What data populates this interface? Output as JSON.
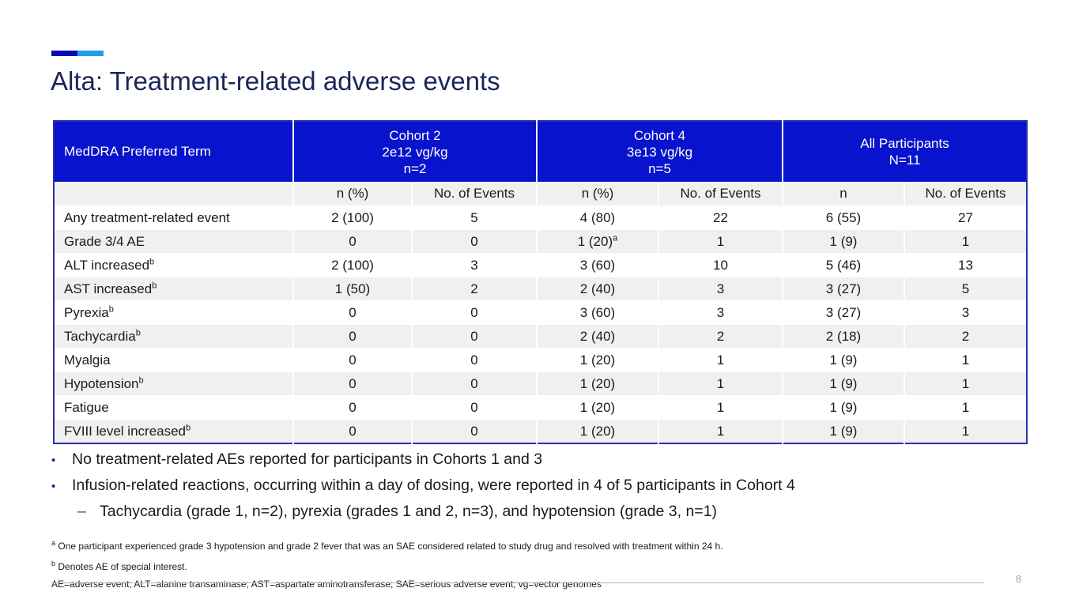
{
  "slide": {
    "title": "Alta: Treatment-related adverse events",
    "page_number": "8",
    "accent_dark_blue": "#0b0bb5",
    "accent_light_blue": "#209fe8",
    "header_blue": "#0813cd",
    "title_navy": "#1b2559"
  },
  "table": {
    "term_header": "MedDRA Preferred Term",
    "groups": [
      {
        "lines": [
          "Cohort 2",
          "2e12 vg/kg",
          "n=2"
        ]
      },
      {
        "lines": [
          "Cohort 4",
          "3e13 vg/kg",
          "n=5"
        ]
      },
      {
        "lines": [
          "All Participants",
          "N=11"
        ]
      }
    ],
    "subheaders": [
      "n (%)",
      "No. of Events",
      "n (%)",
      "No. of Events",
      "n",
      "No. of Events"
    ],
    "rows": [
      [
        "Any treatment-related event",
        "2 (100)",
        "5",
        "4 (80)",
        "22",
        "6 (55)",
        "27"
      ],
      [
        "Grade 3/4 AE",
        "0",
        "0",
        "1 (20)^a",
        "1",
        "1 (9)",
        "1"
      ],
      [
        "ALT increased^b",
        "2 (100)",
        "3",
        "3 (60)",
        "10",
        "5 (46)",
        "13"
      ],
      [
        "AST increased^b",
        "1 (50)",
        "2",
        "2 (40)",
        "3",
        "3 (27)",
        "5"
      ],
      [
        "Pyrexia^b",
        "0",
        "0",
        "3 (60)",
        "3",
        "3 (27)",
        "3"
      ],
      [
        "Tachycardia^b",
        "0",
        "0",
        "2 (40)",
        "2",
        "2 (18)",
        "2"
      ],
      [
        "Myalgia",
        "0",
        "0",
        "1 (20)",
        "1",
        "1 (9)",
        "1"
      ],
      [
        "Hypotension^b",
        "0",
        "0",
        "1 (20)",
        "1",
        "1 (9)",
        "1"
      ],
      [
        "Fatigue",
        "0",
        "0",
        "1 (20)",
        "1",
        "1 (9)",
        "1"
      ],
      [
        "FVIII level increased^b",
        "0",
        "0",
        "1 (20)",
        "1",
        "1 (9)",
        "1"
      ]
    ]
  },
  "bullets": [
    {
      "level": 1,
      "marker": "•",
      "text": "No treatment-related AEs reported for participants in Cohorts 1 and 3"
    },
    {
      "level": 1,
      "marker": "•",
      "text": "Infusion-related reactions, occurring within a day of dosing, were reported in 4 of 5 participants in Cohort 4"
    },
    {
      "level": 2,
      "marker": "–",
      "text": "Tachycardia (grade 1, n=2), pyrexia (grades 1 and 2, n=3), and hypotension (grade 3, n=1)"
    }
  ],
  "footnotes": [
    {
      "sup": "a",
      "text": "One participant experienced grade 3 hypotension and grade 2 fever that was an SAE considered related to study drug and resolved with treatment within 24 h."
    },
    {
      "sup": "b",
      "text": "Denotes AE of special interest."
    },
    {
      "sup": "",
      "text": "AE=adverse event; ALT=alanine transaminase; AST=aspartate aminotransferase; SAE=serious adverse event; vg=vector genomes"
    }
  ]
}
